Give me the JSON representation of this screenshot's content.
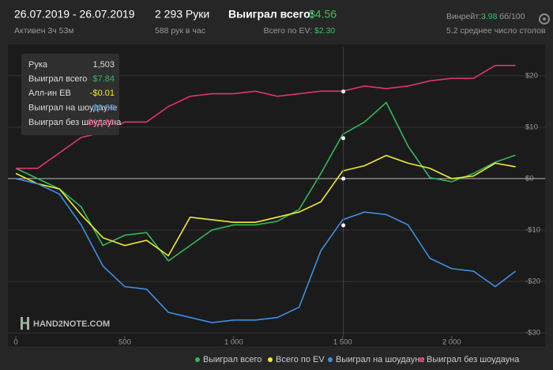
{
  "header": {
    "date_range": "26.07.2019 - 26.07.2019",
    "active": "Активен 3ч 53м",
    "hands": "2 293 Руки",
    "hands_per_hour": "588 рук в час",
    "won_label": "Выиграл всего:",
    "won_value": "$4.56",
    "ev_label": "Всего по EV:",
    "ev_value": "$2.30",
    "winrate_label": "Винрейт:",
    "winrate_value": "3.98",
    "winrate_unit": "бб/100",
    "tables": "5.2 среднее число столов"
  },
  "logo": "HAND2NOTE.COM",
  "tooltip": {
    "hand_label": "Рука",
    "hand": {
      "value": 1503,
      "label": "1,503"
    },
    "rows": [
      {
        "name": "Выиграл всего",
        "value": 7.84,
        "label": "$7.84",
        "color": "#35b85c"
      },
      {
        "name": "Алл-ин EB",
        "value": -0.01,
        "label": "-$0.01",
        "color": "#f2ec2a"
      },
      {
        "name": "Выиграл на шоудауне",
        "value": -9.09,
        "label": "-$9.09",
        "color": "#3d8fe3"
      },
      {
        "name": "Выиграл без шоудауна",
        "value": 16.93,
        "label": "$16.93",
        "color": "#e2336f"
      }
    ]
  },
  "chart_data": {
    "type": "line",
    "x": [
      0,
      100,
      200,
      300,
      400,
      500,
      600,
      700,
      800,
      900,
      1000,
      1100,
      1200,
      1300,
      1400,
      1500,
      1600,
      1700,
      1800,
      1900,
      2000,
      2100,
      2200,
      2293
    ],
    "series": [
      {
        "name": "Выиграл всего",
        "color": "#35b85c",
        "values": [
          2,
          0,
          -2,
          -5.5,
          -13,
          -11,
          -10.5,
          -16,
          -13,
          -10,
          -9,
          -9,
          -8.3,
          -6,
          1,
          8.6,
          11,
          14.8,
          6.3,
          0.2,
          -0.6,
          1,
          3.2,
          4.56
        ]
      },
      {
        "name": "Всего по EV",
        "color": "#f2ec2a",
        "values": [
          1,
          -1,
          -2,
          -7,
          -11.5,
          -13,
          -12,
          -15,
          -7.5,
          -8,
          -8.5,
          -8.5,
          -7.5,
          -6.5,
          -4.5,
          1.5,
          2.5,
          4.5,
          3,
          2,
          0,
          0.5,
          3,
          2.3
        ]
      },
      {
        "name": "Выиграл на шоудауне",
        "color": "#3d8fe3",
        "values": [
          0,
          -1,
          -3,
          -9,
          -17,
          -21,
          -21.5,
          -26,
          -27,
          -28,
          -27.5,
          -27.5,
          -27,
          -25,
          -14,
          -8,
          -6.5,
          -7,
          -9,
          -15.5,
          -17.5,
          -18,
          -21,
          -18
        ]
      },
      {
        "name": "Выиграл без шоудауна",
        "color": "#e2336f",
        "values": [
          2,
          2,
          5,
          8,
          9,
          11,
          11,
          14,
          16,
          16.5,
          16.5,
          17,
          16,
          16.5,
          17,
          17,
          18,
          17.5,
          18,
          19,
          19.5,
          19.5,
          22,
          22
        ]
      }
    ],
    "xlim": [
      0,
      2320
    ],
    "xticks": [
      0,
      500,
      {
        "value": 1000,
        "label": "1 000"
      },
      {
        "value": 1500,
        "label": "1 500"
      },
      {
        "value": 2000,
        "label": "2 000"
      }
    ],
    "ylim": [
      -30.6,
      25.5
    ],
    "yticks": [
      {
        "value": 20,
        "label": "$20"
      },
      {
        "value": 10,
        "label": "$10"
      },
      {
        "value": 0,
        "label": "$0"
      },
      {
        "value": -10,
        "label": "-$10"
      },
      {
        "value": -20,
        "label": "-$20"
      },
      {
        "value": -30,
        "label": "-$30"
      }
    ],
    "grid": true
  }
}
